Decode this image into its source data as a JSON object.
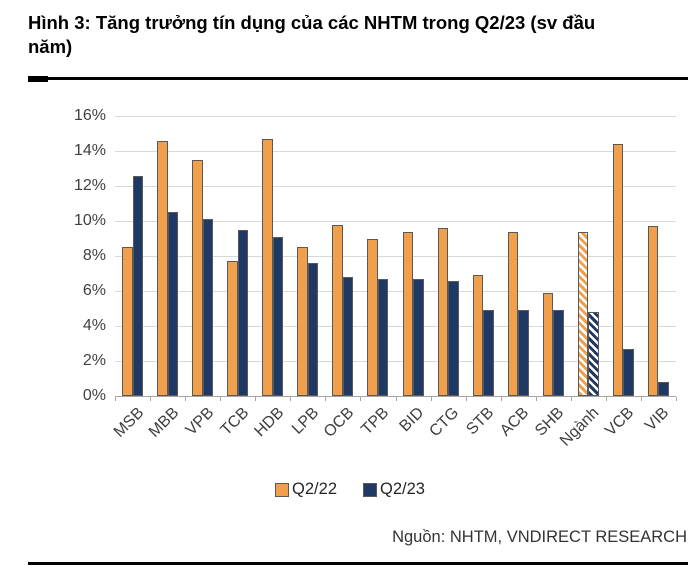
{
  "figure": {
    "title": "Hình 3: Tăng trưởng tín dụng của các NHTM trong Q2/23 (sv đầu\nnăm)",
    "source": "Nguồn: NHTM, VNDIRECT RESEARCH"
  },
  "chart_data": {
    "type": "bar",
    "title": "Tăng trưởng tín dụng của các NHTM trong Q2/23 (sv đầu năm)",
    "categories": [
      "MSB",
      "MBB",
      "VPB",
      "TCB",
      "HDB",
      "LPB",
      "OCB",
      "TPB",
      "BID",
      "CTG",
      "STB",
      "ACB",
      "SHB",
      "Ngành",
      "VCB",
      "VIB"
    ],
    "series": [
      {
        "name": "Q2/22",
        "color": "#F0A04D",
        "values": [
          8.5,
          14.6,
          13.5,
          7.7,
          14.7,
          8.5,
          9.8,
          9.0,
          9.4,
          9.6,
          6.9,
          9.4,
          5.9,
          9.4,
          14.4,
          9.7
        ]
      },
      {
        "name": "Q2/23",
        "color": "#1F3864",
        "values": [
          12.6,
          10.5,
          10.1,
          9.5,
          9.1,
          7.6,
          6.8,
          6.7,
          6.7,
          6.6,
          4.9,
          4.9,
          4.9,
          4.8,
          2.7,
          0.8
        ]
      }
    ],
    "hatched_categories": [
      "Ngành"
    ],
    "xlabel": "",
    "ylabel": "",
    "ylim": [
      0,
      16
    ],
    "ytick_step": 2,
    "ytick_suffix": "%",
    "grid": true,
    "legend_position": "bottom",
    "bar_border_color": "#595959",
    "gridline_color": "#d9d9d9",
    "axis_color": "#a6a6a6",
    "tick_text_color": "#404040"
  }
}
